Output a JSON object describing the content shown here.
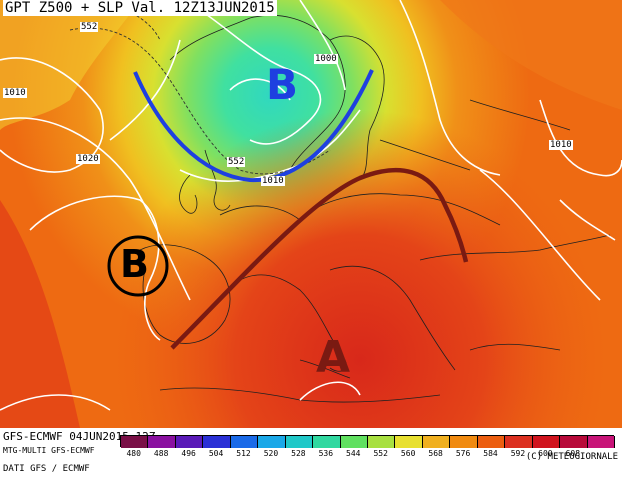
{
  "header": {
    "title": "GPT Z500 + SLP Val. 12Z13JUN2015"
  },
  "map": {
    "slp_labels": [
      "1010",
      "1010",
      "1020",
      "1000",
      "1010",
      "1010"
    ],
    "z500_labels": [
      "552",
      "552"
    ],
    "annotations": {
      "low_north": "B",
      "low_iberia": "B",
      "high_south": "A"
    },
    "colors": {
      "annotation_blue": "#1e40e0",
      "annotation_brown": "#7a1a12",
      "annotation_black": "#000000"
    }
  },
  "footer": {
    "run": "GFS-ECMWF 04JUN2015 12Z",
    "models": "MTG-MULTI GFS-ECMWF",
    "source": "DATI GFS / ECMWF",
    "credit": "(C) METEOGIORNALE"
  },
  "colorbar": {
    "ticks": [
      "480",
      "488",
      "496",
      "504",
      "512",
      "520",
      "528",
      "536",
      "544",
      "552",
      "560",
      "568",
      "576",
      "584",
      "592",
      "600",
      "608"
    ],
    "colors": [
      "#7a0f46",
      "#8a10a0",
      "#5a1ab8",
      "#2a30d6",
      "#1a6ae8",
      "#1aa8e8",
      "#20c8c8",
      "#30d8a0",
      "#60e060",
      "#a8e040",
      "#e8e030",
      "#f0b020",
      "#f08a10",
      "#ec5e10",
      "#dc3020",
      "#d0141e",
      "#b80a3a",
      "#c81478"
    ]
  }
}
